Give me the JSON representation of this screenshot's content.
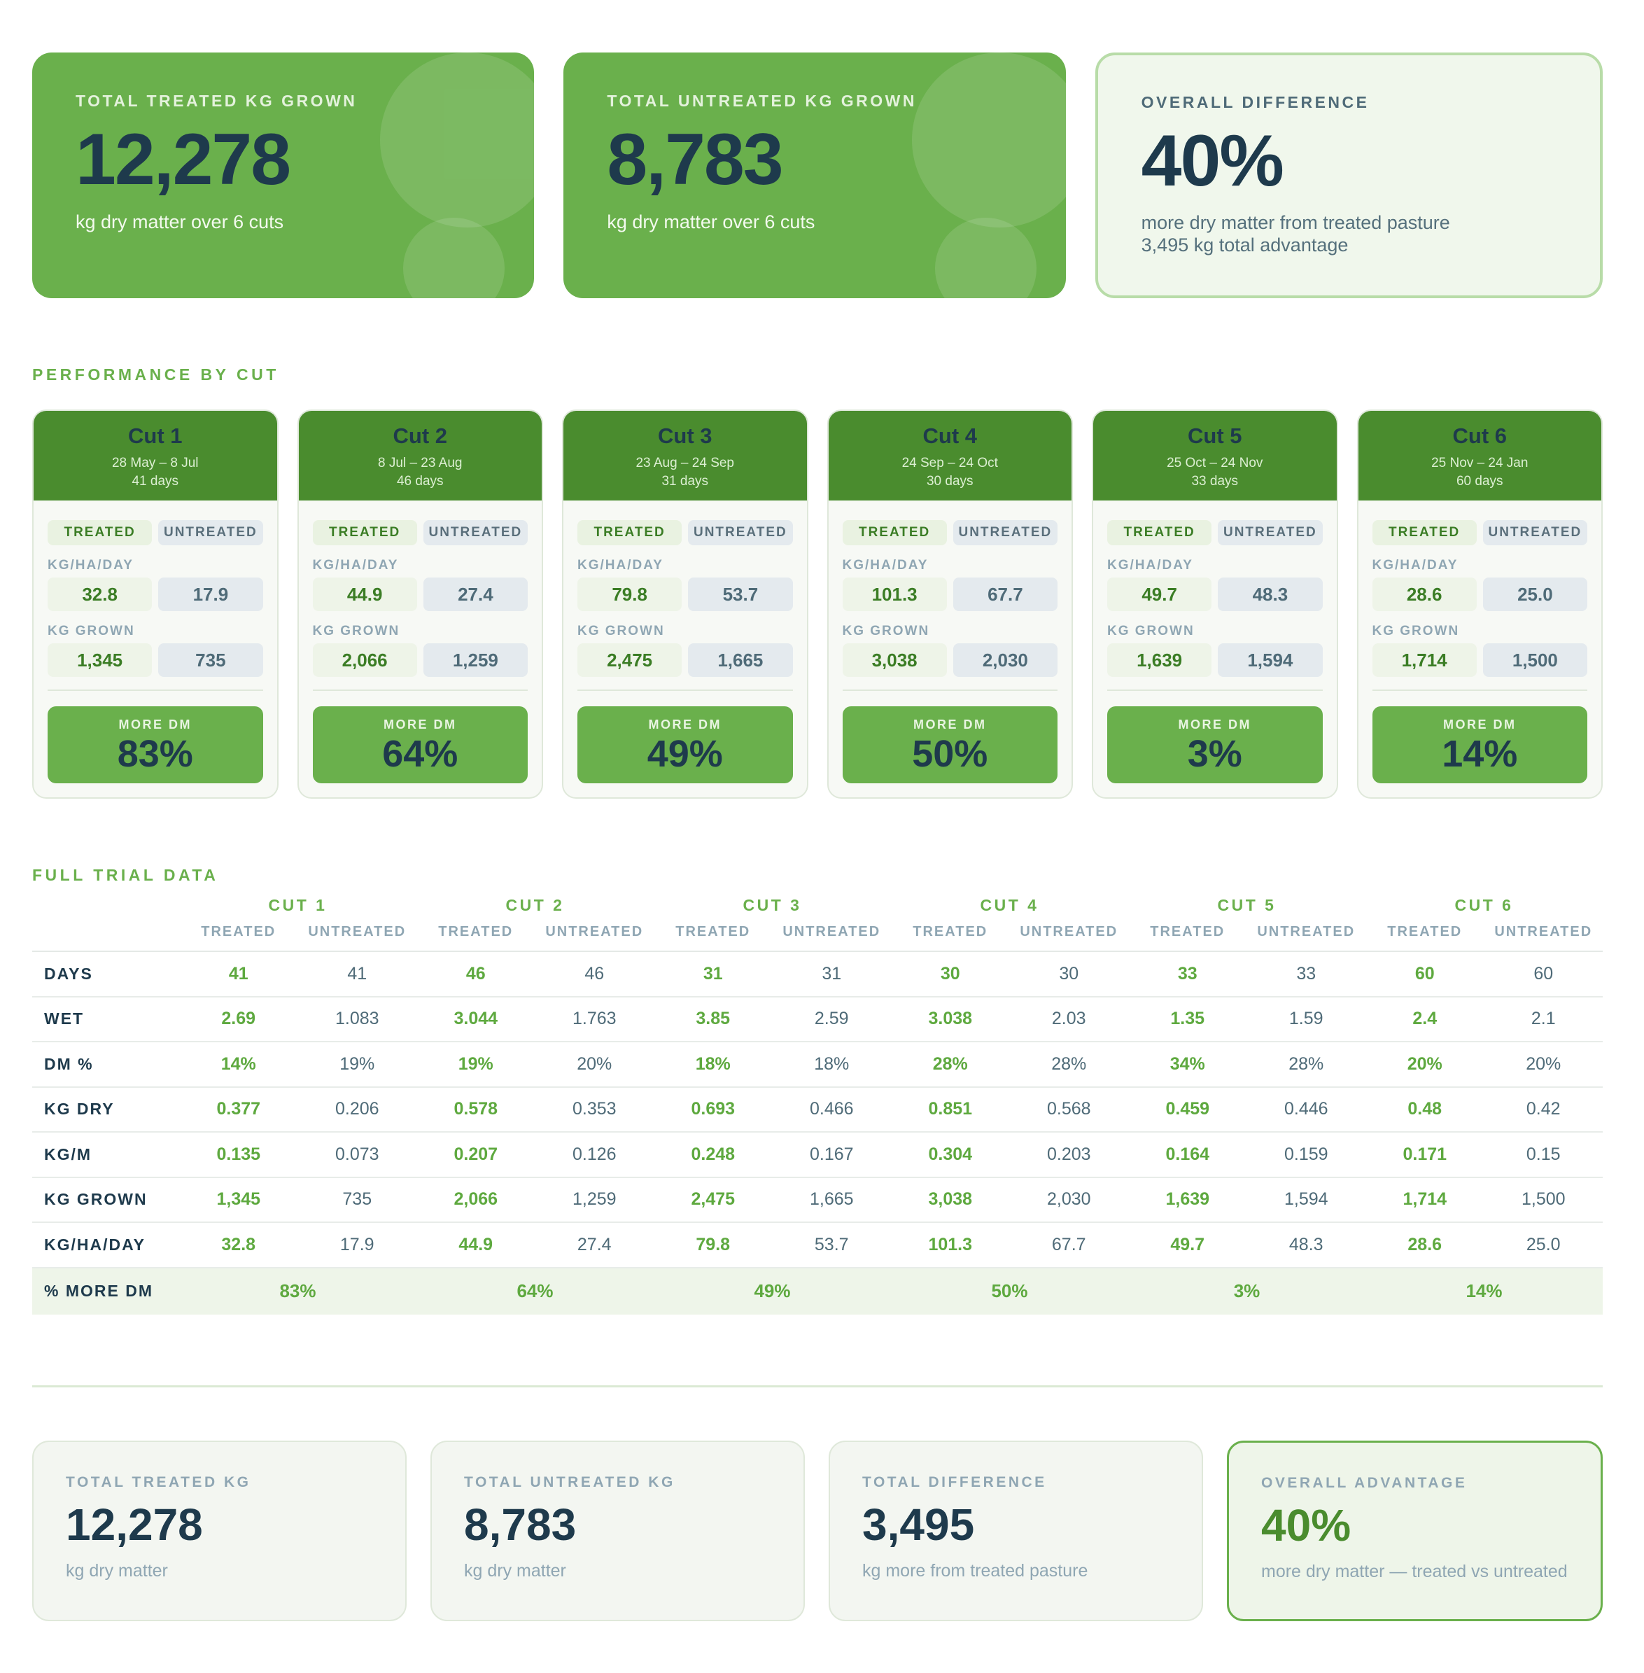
{
  "hero": [
    {
      "label": "TOTAL TREATED KG GROWN",
      "value": "12,278",
      "sub": "kg dry matter over 6 cuts"
    },
    {
      "label": "TOTAL UNTREATED KG GROWN",
      "value": "8,783",
      "sub": "kg dry matter over 6 cuts"
    },
    {
      "label": "OVERALL DIFFERENCE",
      "value": "40%",
      "sub1": "more dry matter from treated pasture",
      "sub2": "3,495 kg total advantage"
    }
  ],
  "performance_title": "PERFORMANCE BY CUT",
  "cut_labels": {
    "treated": "TREATED",
    "untreated": "UNTREATED",
    "rate": "KG/HA/DAY",
    "grown": "KG GROWN",
    "more": "MORE DM"
  },
  "cuts": [
    {
      "name": "Cut 1",
      "dates": "28 May – 8 Jul",
      "days": "41 days",
      "rate_t": "32.8",
      "rate_u": "17.9",
      "grown_t": "1,345",
      "grown_u": "735",
      "more": "83%"
    },
    {
      "name": "Cut 2",
      "dates": "8 Jul – 23 Aug",
      "days": "46 days",
      "rate_t": "44.9",
      "rate_u": "27.4",
      "grown_t": "2,066",
      "grown_u": "1,259",
      "more": "64%"
    },
    {
      "name": "Cut 3",
      "dates": "23 Aug – 24 Sep",
      "days": "31 days",
      "rate_t": "79.8",
      "rate_u": "53.7",
      "grown_t": "2,475",
      "grown_u": "1,665",
      "more": "49%"
    },
    {
      "name": "Cut 4",
      "dates": "24 Sep – 24 Oct",
      "days": "30 days",
      "rate_t": "101.3",
      "rate_u": "67.7",
      "grown_t": "3,038",
      "grown_u": "2,030",
      "more": "50%"
    },
    {
      "name": "Cut 5",
      "dates": "25 Oct – 24 Nov",
      "days": "33 days",
      "rate_t": "49.7",
      "rate_u": "48.3",
      "grown_t": "1,639",
      "grown_u": "1,594",
      "more": "3%"
    },
    {
      "name": "Cut 6",
      "dates": "25 Nov – 24 Jan",
      "days": "60 days",
      "rate_t": "28.6",
      "rate_u": "25.0",
      "grown_t": "1,714",
      "grown_u": "1,500",
      "more": "14%"
    }
  ],
  "table_title": "FULL TRIAL DATA",
  "table": {
    "cut_headers": [
      "CUT 1",
      "CUT 2",
      "CUT 3",
      "CUT 4",
      "CUT 5",
      "CUT 6"
    ],
    "sub_treated": "TREATED",
    "sub_untreated": "UNTREATED",
    "rows": [
      {
        "label": "DAYS",
        "values": [
          "41",
          "41",
          "46",
          "46",
          "31",
          "31",
          "30",
          "30",
          "33",
          "33",
          "60",
          "60"
        ]
      },
      {
        "label": "WET",
        "values": [
          "2.69",
          "1.083",
          "3.044",
          "1.763",
          "3.85",
          "2.59",
          "3.038",
          "2.03",
          "1.35",
          "1.59",
          "2.4",
          "2.1"
        ]
      },
      {
        "label": "DM %",
        "values": [
          "14%",
          "19%",
          "19%",
          "20%",
          "18%",
          "18%",
          "28%",
          "28%",
          "34%",
          "28%",
          "20%",
          "20%"
        ]
      },
      {
        "label": "KG DRY",
        "values": [
          "0.377",
          "0.206",
          "0.578",
          "0.353",
          "0.693",
          "0.466",
          "0.851",
          "0.568",
          "0.459",
          "0.446",
          "0.48",
          "0.42"
        ]
      },
      {
        "label": "KG/M",
        "values": [
          "0.135",
          "0.073",
          "0.207",
          "0.126",
          "0.248",
          "0.167",
          "0.304",
          "0.203",
          "0.164",
          "0.159",
          "0.171",
          "0.15"
        ]
      },
      {
        "label": "KG GROWN",
        "values": [
          "1,345",
          "735",
          "2,066",
          "1,259",
          "2,475",
          "1,665",
          "3,038",
          "2,030",
          "1,639",
          "1,594",
          "1,714",
          "1,500"
        ]
      },
      {
        "label": "KG/HA/DAY",
        "values": [
          "32.8",
          "17.9",
          "44.9",
          "27.4",
          "79.8",
          "53.7",
          "101.3",
          "67.7",
          "49.7",
          "48.3",
          "28.6",
          "25.0"
        ]
      }
    ],
    "final_label": "% MORE DM",
    "final_values": [
      "83%",
      "64%",
      "49%",
      "50%",
      "3%",
      "14%"
    ]
  },
  "summary": [
    {
      "label": "TOTAL TREATED KG",
      "value": "12,278",
      "sub": "kg dry matter"
    },
    {
      "label": "TOTAL UNTREATED KG",
      "value": "8,783",
      "sub": "kg dry matter"
    },
    {
      "label": "TOTAL DIFFERENCE",
      "value": "3,495",
      "sub": "kg more from treated pasture"
    },
    {
      "label": "OVERALL ADVANTAGE",
      "value": "40%",
      "sub": "more dry matter — treated vs untreated"
    }
  ],
  "colors": {
    "accent": "#6ab04c",
    "dark_green": "#4a8c2e",
    "navy": "#1e3a4c",
    "muted": "#8fa6b3"
  }
}
